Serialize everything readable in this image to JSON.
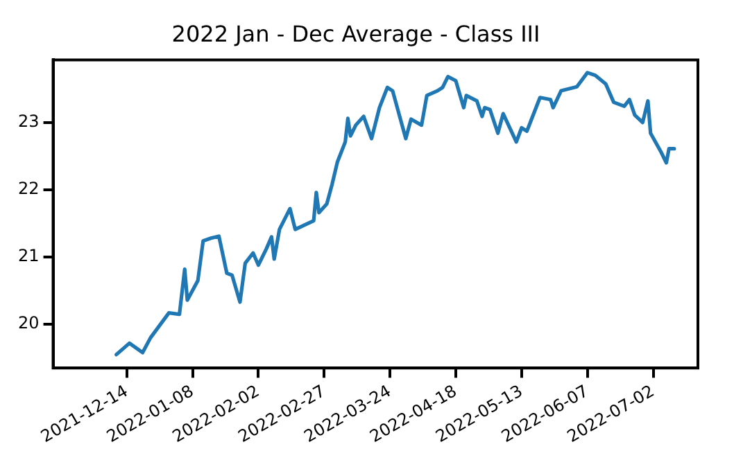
{
  "chart_data": {
    "type": "line",
    "title": "2022 Jan - Dec Average - Class III",
    "x": [
      "2021-12-10",
      "2021-12-15",
      "2021-12-20",
      "2021-12-23",
      "2021-12-30",
      "2022-01-03",
      "2022-01-05",
      "2022-01-06",
      "2022-01-10",
      "2022-01-12",
      "2022-01-15",
      "2022-01-18",
      "2022-01-21",
      "2022-01-23",
      "2022-01-26",
      "2022-01-28",
      "2022-01-31",
      "2022-02-02",
      "2022-02-05",
      "2022-02-07",
      "2022-02-08",
      "2022-02-10",
      "2022-02-14",
      "2022-02-16",
      "2022-02-23",
      "2022-02-24",
      "2022-02-25",
      "2022-02-28",
      "2022-03-02",
      "2022-03-04",
      "2022-03-07",
      "2022-03-08",
      "2022-03-09",
      "2022-03-11",
      "2022-03-14",
      "2022-03-17",
      "2022-03-20",
      "2022-03-23",
      "2022-03-25",
      "2022-03-30",
      "2022-04-01",
      "2022-04-05",
      "2022-04-07",
      "2022-04-11",
      "2022-04-13",
      "2022-04-15",
      "2022-04-18",
      "2022-04-21",
      "2022-04-22",
      "2022-04-26",
      "2022-04-28",
      "2022-04-29",
      "2022-05-01",
      "2022-05-04",
      "2022-05-06",
      "2022-05-11",
      "2022-05-13",
      "2022-05-15",
      "2022-05-20",
      "2022-05-24",
      "2022-05-25",
      "2022-05-28",
      "2022-06-03",
      "2022-06-07",
      "2022-06-10",
      "2022-06-14",
      "2022-06-17",
      "2022-06-21",
      "2022-06-23",
      "2022-06-25",
      "2022-06-28",
      "2022-06-30",
      "2022-07-01",
      "2022-07-05",
      "2022-07-07",
      "2022-07-08",
      "2022-07-10"
    ],
    "series": [
      {
        "color": "#1f77b4",
        "values": [
          19.55,
          19.72,
          19.58,
          19.8,
          20.17,
          20.15,
          20.82,
          20.36,
          20.65,
          21.24,
          21.28,
          21.31,
          20.76,
          20.73,
          20.33,
          20.91,
          21.06,
          20.88,
          21.12,
          21.3,
          20.97,
          21.41,
          21.72,
          21.41,
          21.54,
          21.96,
          21.66,
          21.79,
          22.08,
          22.41,
          22.71,
          23.06,
          22.8,
          22.96,
          23.09,
          22.76,
          23.22,
          23.52,
          23.47,
          22.76,
          23.05,
          22.96,
          23.4,
          23.47,
          23.52,
          23.68,
          23.62,
          23.22,
          23.4,
          23.32,
          23.09,
          23.22,
          23.19,
          22.84,
          23.13,
          22.71,
          22.92,
          22.87,
          23.37,
          23.34,
          23.22,
          23.47,
          23.53,
          23.74,
          23.7,
          23.57,
          23.3,
          23.24,
          23.34,
          23.11,
          23.0,
          23.32,
          22.84,
          22.56,
          22.4,
          22.61,
          22.61
        ]
      }
    ],
    "xlim": [
      "2021-11-16",
      "2022-07-19"
    ],
    "xticks": [
      "2021-12-14",
      "2022-01-08",
      "2022-02-02",
      "2022-02-27",
      "2022-03-24",
      "2022-04-18",
      "2022-05-13",
      "2022-06-07",
      "2022-07-02"
    ],
    "ylim": [
      19.35,
      23.93
    ],
    "yticks": [
      20,
      21,
      22,
      23
    ],
    "grid": false,
    "legend": false,
    "marker": "none",
    "line_style": "solid"
  }
}
